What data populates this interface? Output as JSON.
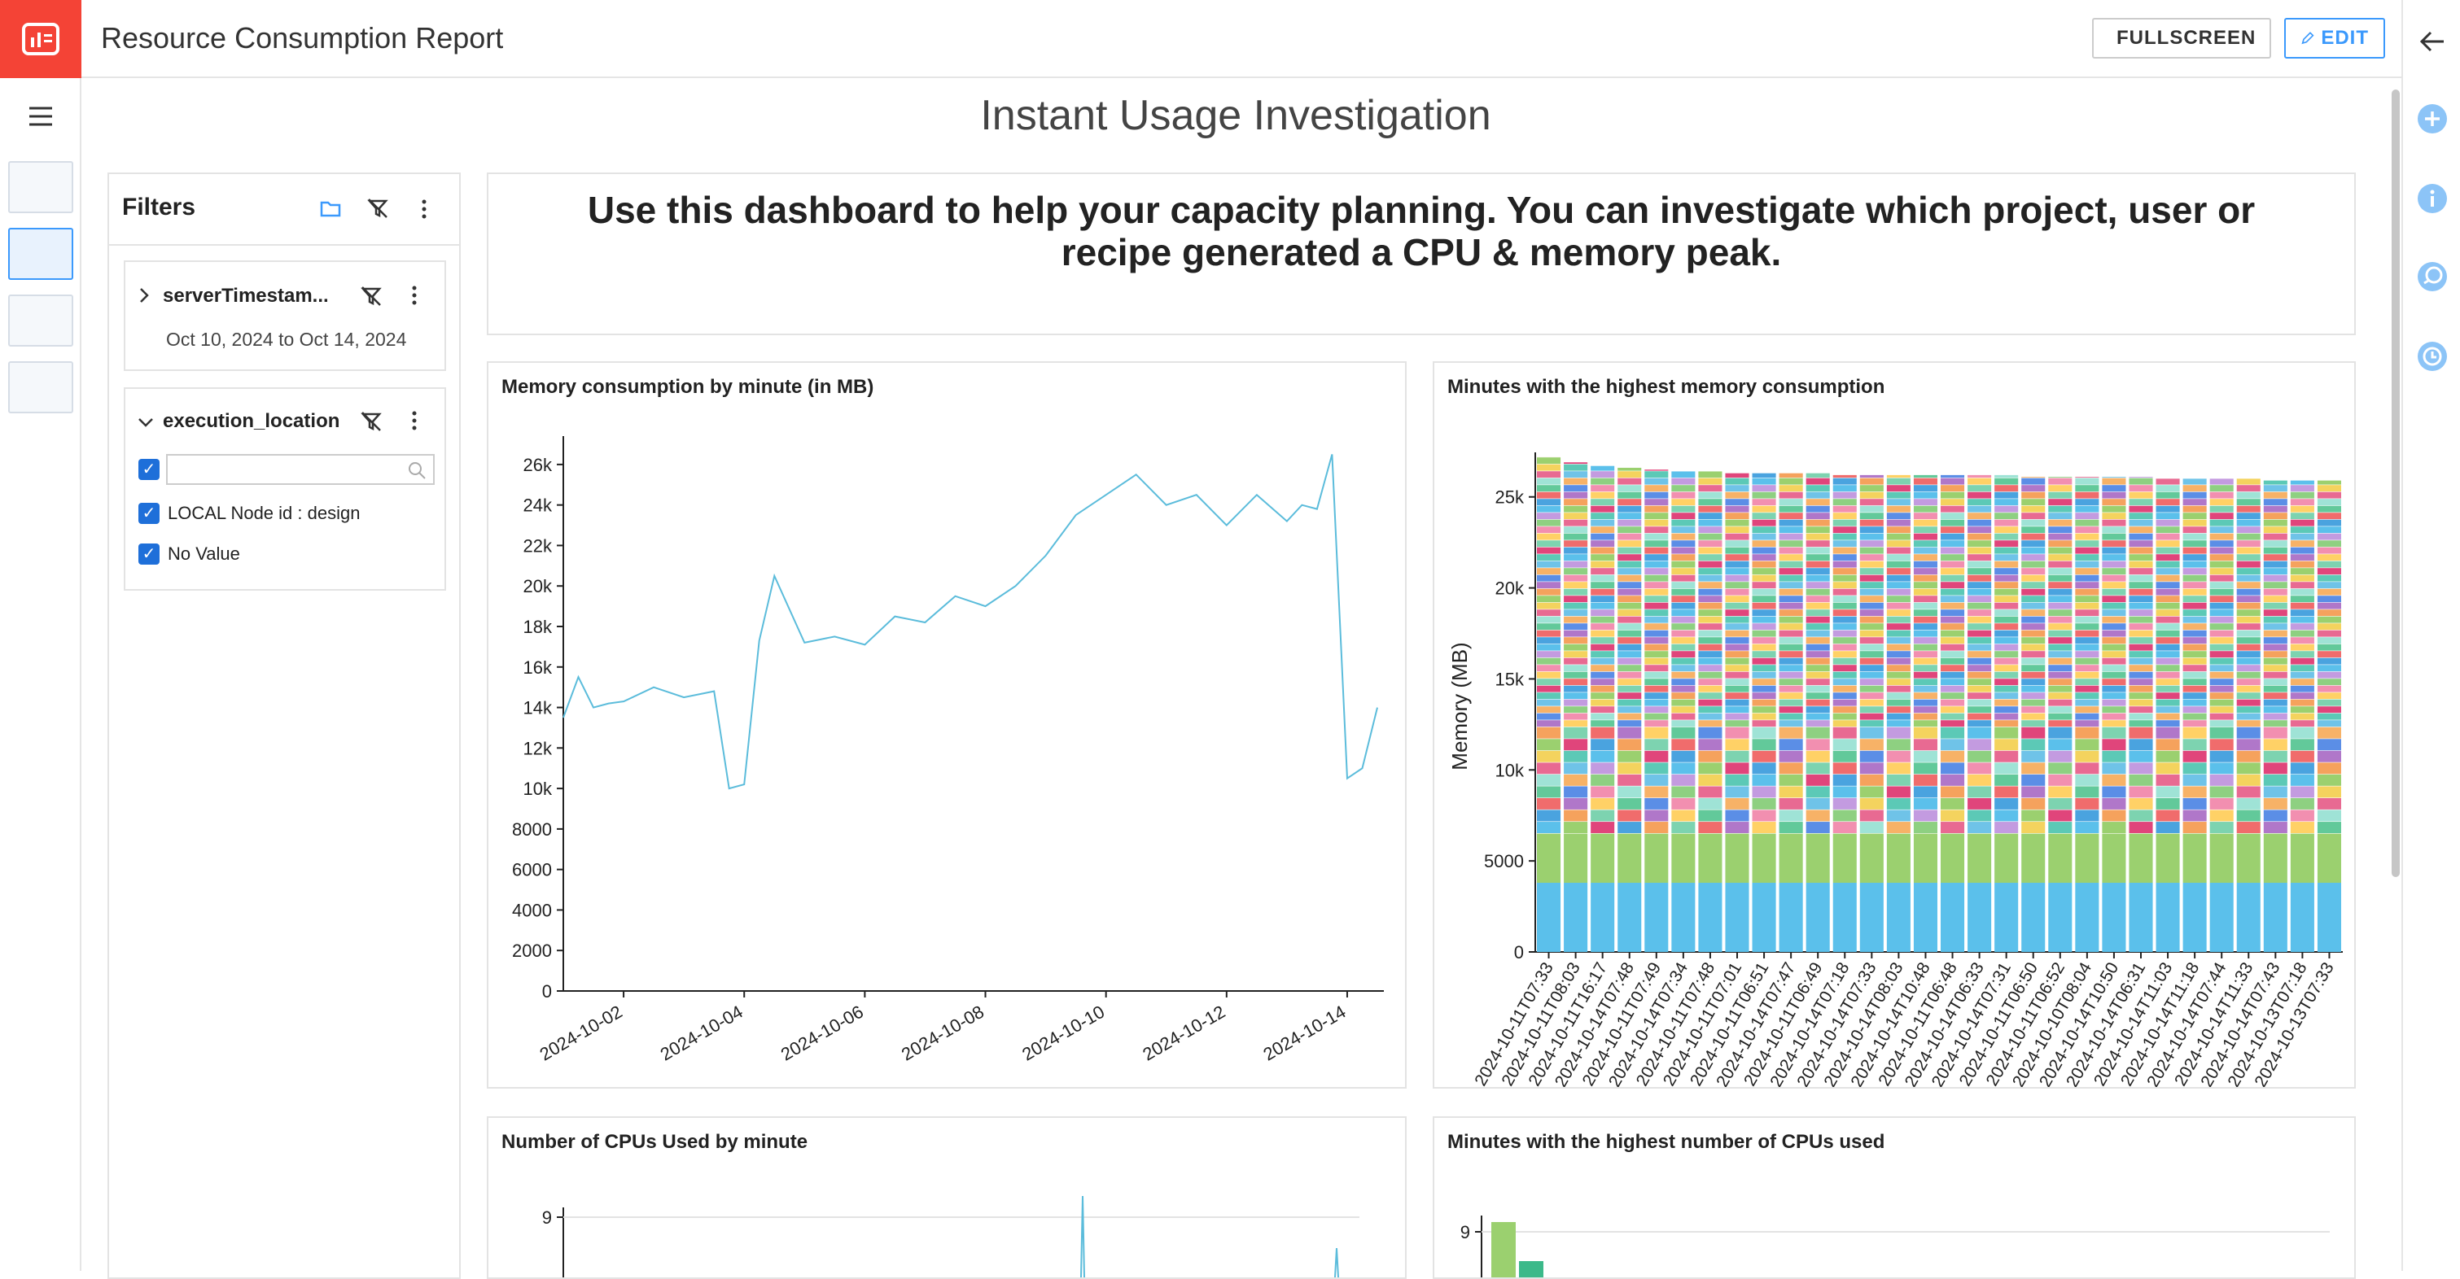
{
  "app": {
    "title": "Resource Consumption Report"
  },
  "toolbar": {
    "fullscreen_label": "FULLSCREEN",
    "edit_label": "EDIT"
  },
  "dashboard": {
    "title": "Instant Usage Investigation"
  },
  "intro": {
    "text": "Use this dashboard to help your capacity planning. You can investigate which project, user or recipe generated a CPU & memory peak."
  },
  "filters": {
    "title": "Filters",
    "items": [
      {
        "name": "serverTimestam...",
        "summary": "Oct 10, 2024 to Oct 14, 2024",
        "expanded": false
      },
      {
        "name": "execution_location",
        "expanded": true,
        "search_placeholder": "",
        "options": [
          {
            "label": "LOCAL Node id : design",
            "checked": true
          },
          {
            "label": "No Value",
            "checked": true
          }
        ]
      }
    ]
  },
  "colors": {
    "accent": "#3b99fc",
    "brand": "#f44336",
    "line": "#5bbcdb"
  },
  "charts": {
    "memory_line": {
      "title": "Memory consumption by minute (in MB)"
    },
    "memory_stacked": {
      "title": "Minutes with the highest memory consumption"
    },
    "cpu_line": {
      "title": "Number of CPUs Used by minute"
    },
    "cpu_top": {
      "title": "Minutes with the highest number of CPUs used"
    }
  },
  "chart_data": [
    {
      "type": "line",
      "title": "Memory consumption by minute (in MB)",
      "xlabel": "",
      "ylabel": "",
      "ylim": [
        0,
        27000
      ],
      "yticks": [
        "0",
        "2000",
        "4000",
        "6000",
        "8000",
        "10k",
        "12k",
        "14k",
        "16k",
        "18k",
        "20k",
        "22k",
        "24k",
        "26k"
      ],
      "xticks": [
        "2024-10-02",
        "2024-10-04",
        "2024-10-06",
        "2024-10-08",
        "2024-10-10",
        "2024-10-12",
        "2024-10-14"
      ],
      "x": [
        "2024-10-01",
        "2024-10-01T06",
        "2024-10-01T12",
        "2024-10-01T18",
        "2024-10-02",
        "2024-10-02T12",
        "2024-10-03",
        "2024-10-03T12",
        "2024-10-03T18",
        "2024-10-04",
        "2024-10-04T06",
        "2024-10-04T12",
        "2024-10-05",
        "2024-10-05T12",
        "2024-10-06",
        "2024-10-06T12",
        "2024-10-07",
        "2024-10-07T12",
        "2024-10-08",
        "2024-10-08T12",
        "2024-10-09",
        "2024-10-09T12",
        "2024-10-10",
        "2024-10-10T12",
        "2024-10-11",
        "2024-10-11T12",
        "2024-10-12",
        "2024-10-12T12",
        "2024-10-13",
        "2024-10-13T06",
        "2024-10-13T12",
        "2024-10-13T18",
        "2024-10-14",
        "2024-10-14T06",
        "2024-10-14T12"
      ],
      "series": [
        {
          "values": [
            13500,
            15500,
            14000,
            14200,
            14300,
            15000,
            14500,
            14800,
            10000,
            10200,
            17300,
            20500,
            17200,
            17500,
            17100,
            18500,
            18200,
            19500,
            19000,
            20000,
            21500,
            23500,
            24500,
            25500,
            24000,
            24500,
            23000,
            24500,
            23200,
            24000,
            23800,
            26500,
            10500,
            11000,
            14000
          ]
        }
      ]
    },
    {
      "type": "bar",
      "title": "Minutes with the highest memory consumption",
      "ylabel": "Memory (MB)",
      "ylim": [
        0,
        27000
      ],
      "yticks": [
        "0",
        "5000",
        "10k",
        "15k",
        "20k",
        "25k"
      ],
      "categories": [
        "2024-10-11T07:33",
        "2024-10-11T08:03",
        "2024-10-11T16:17",
        "2024-10-14T07:48",
        "2024-10-11T07:49",
        "2024-10-14T07:34",
        "2024-10-11T07:48",
        "2024-10-11T07:01",
        "2024-10-11T06:51",
        "2024-10-14T07:47",
        "2024-10-11T06:49",
        "2024-10-14T07:18",
        "2024-10-14T07:33",
        "2024-10-14T08:03",
        "2024-10-14T10:48",
        "2024-10-11T06:48",
        "2024-10-14T06:33",
        "2024-10-14T07:31",
        "2024-10-11T06:50",
        "2024-10-11T06:52",
        "2024-10-10T08:04",
        "2024-10-14T10:50",
        "2024-10-14T06:31",
        "2024-10-14T11:03",
        "2024-10-14T11:18",
        "2024-10-14T07:44",
        "2024-10-14T11:33",
        "2024-10-14T07:43",
        "2024-10-13T07:18",
        "2024-10-13T07:33"
      ],
      "values": [
        27200,
        26900,
        26700,
        26600,
        26500,
        26400,
        26400,
        26300,
        26300,
        26300,
        26300,
        26200,
        26200,
        26200,
        26200,
        26200,
        26200,
        26200,
        26100,
        26100,
        26100,
        26100,
        26100,
        26000,
        26000,
        26000,
        26000,
        25900,
        25900,
        25900
      ]
    },
    {
      "type": "line",
      "title": "Number of CPUs Used by minute",
      "yticks": [
        "9"
      ]
    },
    {
      "type": "bar",
      "title": "Minutes with the highest number of CPUs used",
      "yticks": [
        "9"
      ]
    }
  ]
}
